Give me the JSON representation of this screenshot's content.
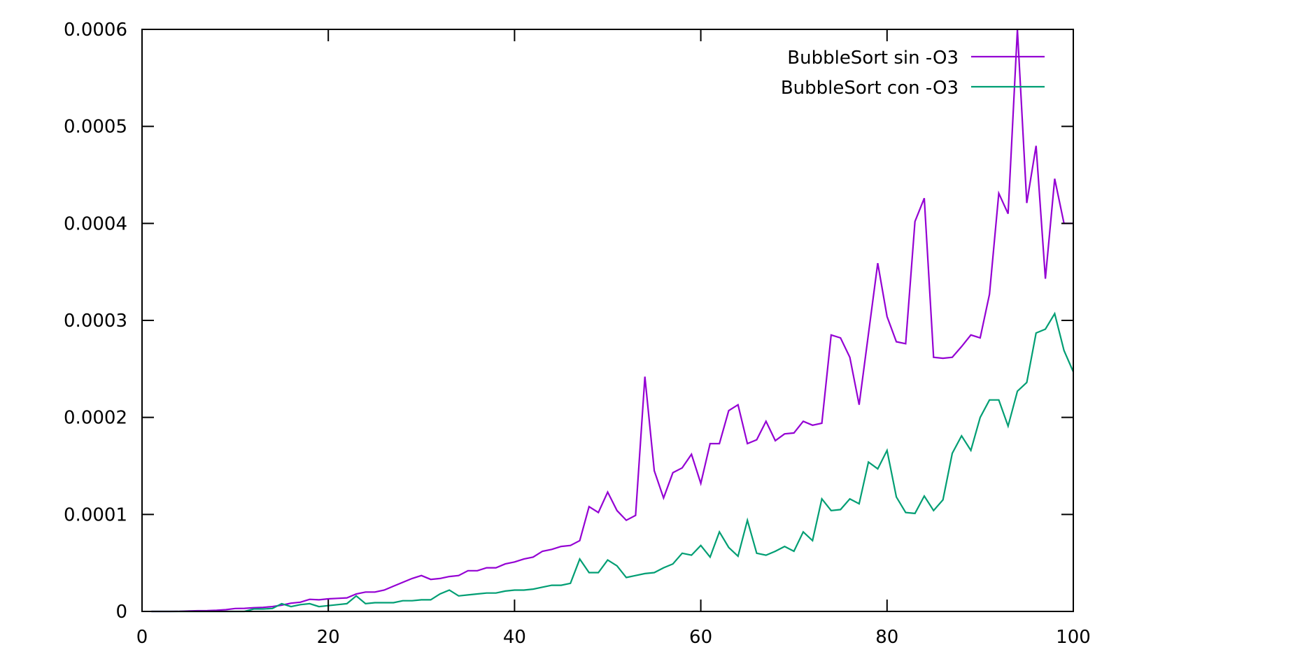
{
  "chart_data": {
    "type": "line",
    "title": "",
    "xlabel": "",
    "ylabel": "",
    "xlim": [
      0,
      100
    ],
    "ylim": [
      0,
      0.0006
    ],
    "x_ticks": [
      "0",
      "20",
      "40",
      "60",
      "80",
      "100"
    ],
    "y_ticks": [
      "0",
      "0.0001",
      "0.0002",
      "0.0003",
      "0.0004",
      "0.0005",
      "0.0006"
    ],
    "grid": false,
    "legend_position": "top-right",
    "x": [
      1,
      2,
      3,
      4,
      5,
      6,
      7,
      8,
      9,
      10,
      11,
      12,
      13,
      14,
      15,
      16,
      17,
      18,
      19,
      20,
      21,
      22,
      23,
      24,
      25,
      26,
      27,
      28,
      29,
      30,
      31,
      32,
      33,
      34,
      35,
      36,
      37,
      38,
      39,
      40,
      41,
      42,
      43,
      44,
      45,
      46,
      47,
      48,
      49,
      50,
      51,
      52,
      53,
      54,
      55,
      56,
      57,
      58,
      59,
      60,
      61,
      62,
      63,
      64,
      65,
      66,
      67,
      68,
      69,
      70,
      71,
      72,
      73,
      74,
      75,
      76,
      77,
      78,
      79,
      80,
      81,
      82,
      83,
      84,
      85,
      86,
      87,
      88,
      89,
      90,
      91,
      92,
      93,
      94,
      95,
      96,
      97,
      98,
      99,
      100
    ],
    "series": [
      {
        "name": "BubbleSort sin -O3",
        "color": "#9400d3",
        "values": [
          0,
          0,
          0,
          1e-07,
          5e-07,
          7e-07,
          9e-07,
          1.2e-06,
          1.8e-06,
          3e-06,
          3.2e-06,
          3.8e-06,
          4.2e-06,
          5e-06,
          6.5e-06,
          8.5e-06,
          9.5e-06,
          1.25e-05,
          1.2e-05,
          1.3e-05,
          1.35e-05,
          1.4e-05,
          1.8e-05,
          2e-05,
          2e-05,
          2.2e-05,
          2.6e-05,
          3e-05,
          3.4e-05,
          3.7e-05,
          3.3e-05,
          3.4e-05,
          3.6e-05,
          3.7e-05,
          4.2e-05,
          4.2e-05,
          4.5e-05,
          4.5e-05,
          4.9e-05,
          5.1e-05,
          5.4e-05,
          5.6e-05,
          6.2e-05,
          6.4e-05,
          6.7e-05,
          6.8e-05,
          7.3e-05,
          0.000108,
          0.000102,
          0.000123,
          0.000104,
          9.4e-05,
          9.9e-05,
          0.000242,
          0.000145,
          0.000117,
          0.000143,
          0.000148,
          0.000162,
          0.000132,
          0.000173,
          0.000173,
          0.000207,
          0.000213,
          0.000173,
          0.000177,
          0.000196,
          0.000176,
          0.000183,
          0.000184,
          0.000196,
          0.000192,
          0.000194,
          0.000285,
          0.000282,
          0.000262,
          0.000213,
          0.000286,
          0.000359,
          0.000304,
          0.000278,
          0.000276,
          0.000402,
          0.000426,
          0.000262,
          0.000261,
          0.000262,
          0.000273,
          0.000285,
          0.000282,
          0.000327,
          0.000431,
          0.00041,
          0.0006,
          0.000421,
          0.00048,
          0.000343,
          0.000446,
          0.0004,
          0.0004
        ]
      },
      {
        "name": "BubbleSort con -O3",
        "color": "#009e73",
        "values": [
          0,
          0,
          0,
          0,
          0,
          0,
          0,
          0,
          0,
          0,
          0,
          2.5e-06,
          2.5e-06,
          3e-06,
          8e-06,
          5e-06,
          7e-06,
          8e-06,
          5e-06,
          6e-06,
          7e-06,
          8e-06,
          1.6e-05,
          8e-06,
          9e-06,
          9e-06,
          9e-06,
          1.1e-05,
          1.1e-05,
          1.2e-05,
          1.2e-05,
          1.8e-05,
          2.2e-05,
          1.6e-05,
          1.7e-05,
          1.8e-05,
          1.9e-05,
          1.9e-05,
          2.1e-05,
          2.2e-05,
          2.2e-05,
          2.3e-05,
          2.5e-05,
          2.7e-05,
          2.7e-05,
          2.9e-05,
          5.4e-05,
          4e-05,
          4e-05,
          5.3e-05,
          4.7e-05,
          3.5e-05,
          3.7e-05,
          3.9e-05,
          4e-05,
          4.5e-05,
          4.9e-05,
          6e-05,
          5.8e-05,
          6.8e-05,
          5.6e-05,
          8.2e-05,
          6.6e-05,
          5.7e-05,
          9.4e-05,
          6e-05,
          5.8e-05,
          6.2e-05,
          6.7e-05,
          6.2e-05,
          8.2e-05,
          7.3e-05,
          0.000116,
          0.000104,
          0.000105,
          0.000116,
          0.000111,
          0.000154,
          0.000147,
          0.000166,
          0.000118,
          0.000102,
          0.000101,
          0.000119,
          0.000104,
          0.000115,
          0.000163,
          0.000181,
          0.000166,
          0.0002,
          0.000218,
          0.000218,
          0.000191,
          0.000227,
          0.000236,
          0.000287,
          0.000291,
          0.000307,
          0.000269,
          0.000247
        ]
      }
    ]
  }
}
